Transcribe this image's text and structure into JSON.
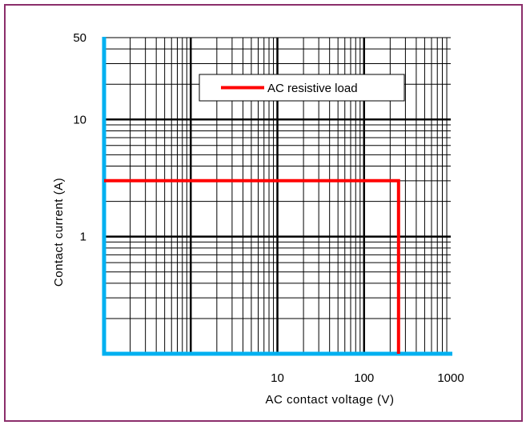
{
  "chart_data": {
    "type": "line",
    "title": "",
    "xlabel": "AC contact voltage (V)",
    "ylabel": "Contact current (A)",
    "x_scale": "log",
    "y_scale": "log",
    "xlim": [
      0.1,
      1000
    ],
    "ylim": [
      0.1,
      50
    ],
    "x_tick_labels": [
      "10",
      "100",
      "1000"
    ],
    "y_tick_labels": [
      "50",
      "10",
      "1"
    ],
    "grid": true,
    "legend_position": "top-right",
    "series": [
      {
        "name": "AC resistive load",
        "color": "#ff0000",
        "x": [
          0.1,
          250,
          250
        ],
        "y": [
          3,
          3,
          0.1
        ]
      }
    ],
    "axis_color": "#00b0f0",
    "frame_color": "#8b2e6b"
  }
}
